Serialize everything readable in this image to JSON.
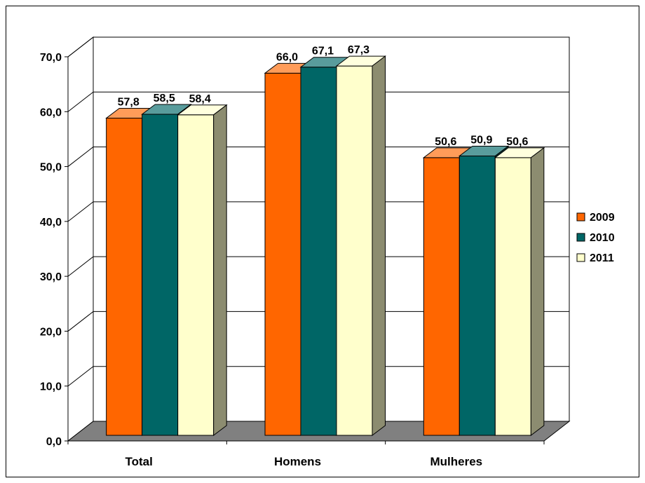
{
  "chart_data": {
    "type": "bar",
    "categories": [
      "Total",
      "Homens",
      "Mulheres"
    ],
    "series": [
      {
        "name": "2009",
        "values": [
          57.8,
          66.0,
          50.6
        ],
        "value_labels": [
          "57,8",
          "66,0",
          "50,6"
        ],
        "color": "#FF6600"
      },
      {
        "name": "2010",
        "values": [
          58.5,
          67.1,
          50.9
        ],
        "value_labels": [
          "58,5",
          "67,1",
          "50,9"
        ],
        "color": "#006666"
      },
      {
        "name": "2011",
        "values": [
          58.4,
          67.3,
          50.6
        ],
        "value_labels": [
          "58,4",
          "67,3",
          "50,6"
        ],
        "color": "#FFFFCC"
      }
    ],
    "ylim": [
      0,
      70
    ],
    "yticks": [
      0,
      10,
      20,
      30,
      40,
      50,
      60,
      70
    ],
    "ytick_labels": [
      "0,0",
      "10,0",
      "20,0",
      "30,0",
      "40,0",
      "50,0",
      "60,0",
      "70,0"
    ],
    "grid": true,
    "legend": "right",
    "three_d": true,
    "floor_color": "#808080"
  }
}
